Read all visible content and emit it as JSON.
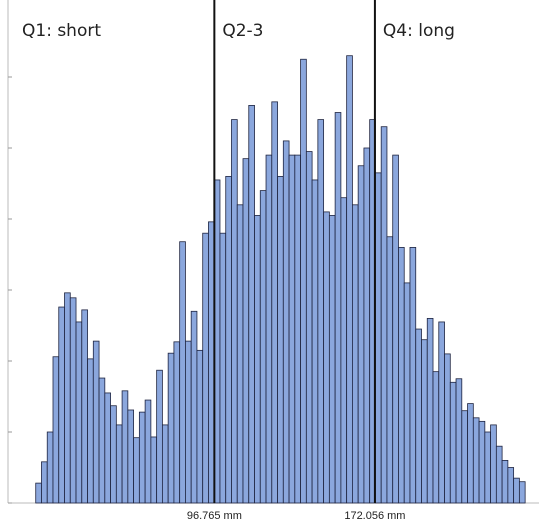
{
  "chart_data": {
    "type": "histogram",
    "bins": [
      13,
      15.7,
      18.4,
      21.1,
      23.8,
      26.5,
      29.2,
      31.9,
      34.6,
      37.3,
      40,
      42.7,
      45.4,
      48.1,
      50.8,
      53.5,
      56.2,
      58.9,
      61.6,
      64.3,
      67,
      69.7,
      72.4,
      75.1,
      77.8,
      80.5,
      83.2,
      85.9,
      88.6,
      91.3,
      94,
      96.7,
      99.4,
      102.1,
      104.8,
      107.5,
      110.2,
      112.9,
      115.6,
      118.3,
      121,
      123.7,
      126.4,
      129.1,
      131.8,
      134.5,
      137.2,
      139.9,
      142.6,
      145.3,
      148,
      150.7,
      153.4,
      156.1,
      158.8,
      161.5,
      164.2,
      166.9,
      169.6,
      172.3,
      175,
      177.7,
      180.4,
      183.1,
      185.8,
      188.5,
      191.2,
      193.9,
      196.6,
      199.3,
      202,
      204.7,
      207.4,
      210.1,
      212.8,
      215.5,
      218.2,
      220.9,
      223.6,
      226.3,
      229,
      231.7,
      234.4,
      237.1,
      239.8,
      242.5
    ],
    "values": [
      2.8,
      5.8,
      10,
      20.6,
      27.6,
      29.6,
      28.9,
      25.5,
      27.2,
      20.3,
      22.8,
      17.6,
      15.5,
      13.7,
      11,
      15.8,
      13.1,
      9.2,
      12.8,
      14.5,
      9.3,
      18.7,
      11,
      21.1,
      22.7,
      36.8,
      22.8,
      27,
      21.5,
      38,
      39.6,
      45.5,
      38,
      46,
      54,
      42,
      48.5,
      56,
      40.5,
      44,
      49,
      56.5,
      46,
      51,
      49,
      49,
      62.5,
      49.5,
      45.5,
      54,
      41,
      40.5,
      55,
      43,
      63,
      42,
      47.5,
      50,
      54,
      46.5,
      53,
      37.5,
      49,
      36,
      31,
      36,
      24.5,
      23,
      26,
      18.5,
      25.5,
      21,
      17,
      17.5,
      13,
      14,
      12,
      11.5,
      10,
      11,
      8,
      6,
      5,
      3.5,
      3
    ],
    "color": "#8ba7dd",
    "xlim": [
      0,
      249
    ],
    "xticks": [
      {
        "value": 96.765,
        "label": "96.765 mm"
      },
      {
        "value": 172.056,
        "label": "172.056 mm"
      }
    ],
    "ylim": [
      0,
      70
    ],
    "yticks": [
      0,
      10,
      20,
      30,
      40,
      50,
      60
    ],
    "annotations": [
      "Q1: short",
      "Q2-3",
      "Q4: long"
    ]
  }
}
